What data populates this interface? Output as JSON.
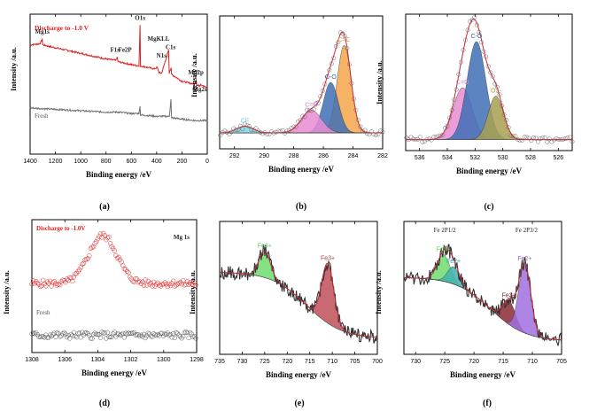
{
  "chart_data": [
    {
      "id": "a",
      "type": "line",
      "panel_label": "(a)",
      "xlabel": "Binding energy /eV",
      "ylabel": "Intensity /a.u.",
      "xlim": [
        1400,
        0
      ],
      "xticks": [
        1400,
        1200,
        1000,
        800,
        600,
        400,
        200,
        0
      ],
      "series": [
        {
          "name": "Discharge to -1.0 V",
          "color": "#e02020",
          "x": [
            1400,
            1320,
            1304,
            1300,
            1200,
            1100,
            1000,
            900,
            800,
            725,
            712,
            705,
            600,
            540,
            531,
            528,
            420,
            395,
            380,
            360,
            306,
            300,
            285,
            282,
            200,
            100,
            88,
            80,
            60,
            52,
            0
          ],
          "y": [
            0.78,
            0.79,
            0.82,
            0.78,
            0.76,
            0.74,
            0.72,
            0.7,
            0.68,
            0.67,
            0.69,
            0.66,
            0.64,
            0.63,
            0.92,
            0.63,
            0.61,
            0.62,
            0.58,
            0.58,
            0.74,
            0.58,
            0.62,
            0.57,
            0.52,
            0.5,
            0.53,
            0.49,
            0.49,
            0.5,
            0.47
          ]
        },
        {
          "name": "Fresh",
          "color": "#707070",
          "x": [
            1400,
            1200,
            1000,
            800,
            700,
            600,
            540,
            531,
            528,
            400,
            300,
            287,
            284,
            282,
            200,
            100,
            0
          ],
          "y": [
            0.33,
            0.32,
            0.31,
            0.3,
            0.3,
            0.29,
            0.29,
            0.34,
            0.28,
            0.27,
            0.27,
            0.39,
            0.3,
            0.26,
            0.25,
            0.24,
            0.24
          ]
        }
      ],
      "annotations": [
        "Mg1s",
        "F1s",
        "Fe2P",
        "O1s",
        "MgKLL",
        "N1s",
        "C1s",
        "Mg2p",
        "Mg2s"
      ]
    },
    {
      "id": "b",
      "type": "area",
      "panel_label": "(b)",
      "xlabel": "Binding energy /eV",
      "ylabel": "Intensity /a.u.",
      "xlim": [
        293,
        282
      ],
      "xticks": [
        292,
        290,
        288,
        286,
        284,
        282
      ],
      "baseline": 0.12,
      "components": [
        {
          "name": "C=C",
          "center": 284.6,
          "fwhm": 1.1,
          "height": 0.66,
          "color": "#f4a64a"
        },
        {
          "name": "C-O",
          "center": 285.5,
          "fwhm": 1.2,
          "height": 0.38,
          "color": "#3f6fb5"
        },
        {
          "name": "C=O",
          "center": 286.8,
          "fwhm": 1.6,
          "height": 0.17,
          "color": "#e88cd4"
        },
        {
          "name": "CF",
          "center": 291.3,
          "fwhm": 1.3,
          "height": 0.05,
          "color": "#7fd7e8"
        }
      ]
    },
    {
      "id": "c",
      "type": "area",
      "panel_label": "(c)",
      "xlabel": "Binding energy /eV",
      "ylabel": "Intensity /a.u.",
      "xlim": [
        537,
        525
      ],
      "xticks": [
        536,
        534,
        532,
        530,
        528,
        526
      ],
      "baseline": 0.08,
      "components": [
        {
          "name": "C=O",
          "center": 532.9,
          "fwhm": 1.6,
          "height": 0.38,
          "color": "#e88cd4"
        },
        {
          "name": "C-O",
          "center": 531.9,
          "fwhm": 1.6,
          "height": 0.72,
          "color": "#3f6fb5"
        },
        {
          "name": "O2-",
          "center": 530.5,
          "fwhm": 1.3,
          "height": 0.32,
          "color": "#a8a050"
        }
      ]
    },
    {
      "id": "d",
      "type": "scatter",
      "panel_label": "(d)",
      "xlabel": "Binding energy /eV",
      "ylabel": "Intensity /a.u.",
      "xlim": [
        1308,
        1298
      ],
      "xticks": [
        1308,
        1306,
        1304,
        1302,
        1300,
        1298
      ],
      "annotations": [
        "Mg 1s"
      ],
      "series": [
        {
          "name": "Discharge to -1.0V",
          "color": "#e02020",
          "baseline": 0.52,
          "peak_center": 1303.7,
          "peak_fwhm": 2.0,
          "peak_height": 0.36
        },
        {
          "name": "Fresh",
          "color": "#555555",
          "baseline": 0.13,
          "peak_center": 1303.7,
          "peak_fwhm": 2.0,
          "peak_height": 0
        }
      ]
    },
    {
      "id": "e",
      "type": "area",
      "panel_label": "(e)",
      "xlabel": "Binding energy /eV",
      "ylabel": "Intensity /a.u.",
      "xlim": [
        735,
        700
      ],
      "xticks": [
        735,
        730,
        725,
        720,
        715,
        710,
        705,
        700
      ],
      "baseline_start": 0.62,
      "baseline_end": 0.12,
      "components": [
        {
          "name": "Fe3+",
          "center": 725.0,
          "fwhm": 3.0,
          "height": 0.2,
          "color": "#6fdc6f"
        },
        {
          "name": "Fe3+",
          "center": 711.0,
          "fwhm": 3.2,
          "height": 0.45,
          "color": "#c0505a"
        }
      ]
    },
    {
      "id": "f",
      "type": "area",
      "panel_label": "(f)",
      "xlabel": "Binding energy /eV",
      "ylabel": "Intensity /a.u.",
      "xlim": [
        732,
        705
      ],
      "xticks": [
        730,
        725,
        720,
        715,
        710,
        705
      ],
      "baseline_start": 0.58,
      "baseline_end": 0.1,
      "annotations": [
        "Fe 2P1/2",
        "Fe 2P3/2"
      ],
      "components": [
        {
          "name": "Fe3+",
          "center": 725.2,
          "fwhm": 2.6,
          "height": 0.2,
          "color": "#6fdc6f"
        },
        {
          "name": "Fe2+",
          "center": 723.5,
          "fwhm": 2.4,
          "height": 0.13,
          "color": "#3fb0b0"
        },
        {
          "name": "Fe3+",
          "center": 714.0,
          "fwhm": 2.6,
          "height": 0.18,
          "color": "#8a2a35"
        },
        {
          "name": "Fe2+",
          "center": 711.3,
          "fwhm": 2.4,
          "height": 0.52,
          "color": "#a070e0"
        }
      ]
    }
  ],
  "colors": {
    "red": "#e02020",
    "gray": "#707070",
    "envelope": "#c0303a"
  }
}
